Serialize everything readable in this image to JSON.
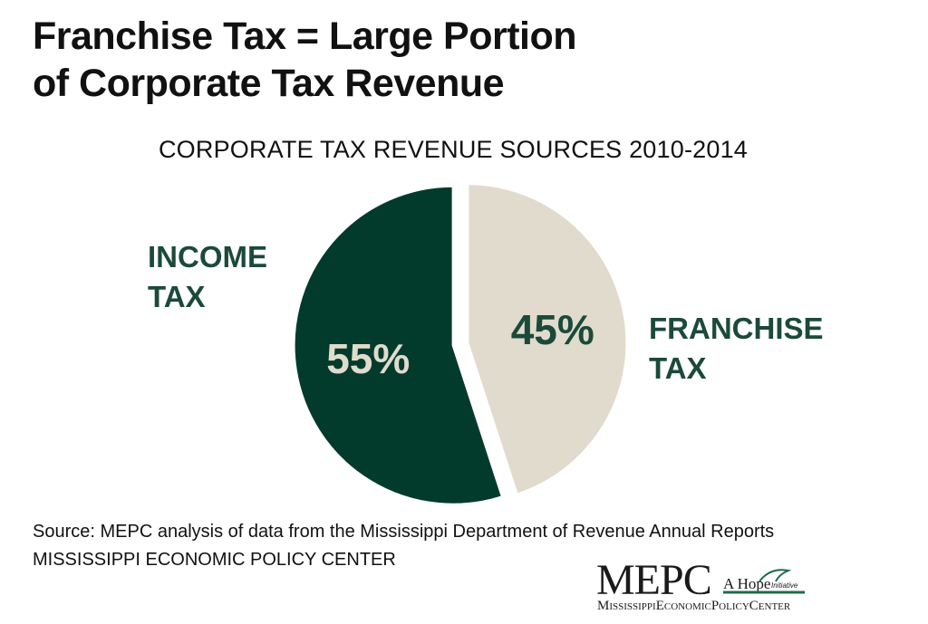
{
  "headline": {
    "line1": "Franchise Tax = Large Portion",
    "line2": "of Corporate Tax Revenue"
  },
  "colors": {
    "income": "#023b2c",
    "franchise": "#e1dbcd",
    "label_green": "#1b4a3a",
    "logo_green": "#1f6b4a"
  },
  "chart_data": {
    "type": "pie",
    "title": "CORPORATE TAX REVENUE SOURCES 2010-2014",
    "slices": [
      {
        "name": "INCOME TAX",
        "label_line1": "INCOME",
        "label_line2": "TAX",
        "value": 55,
        "value_label": "55%",
        "color": "#023b2c",
        "value_color": "#e1dbcd"
      },
      {
        "name": "FRANCHISE TAX",
        "label_line1": "FRANCHISE",
        "label_line2": "TAX",
        "value": 45,
        "value_label": "45%",
        "color": "#e1dbcd",
        "value_color": "#1b4a3a"
      }
    ]
  },
  "footer": {
    "source": "Source: MEPC analysis of data from the Mississippi Department of Revenue Annual Reports",
    "org": "MISSISSIPPI ECONOMIC POLICY CENTER"
  },
  "logo": {
    "mark": "MEPC",
    "tagline": "A Hope",
    "tagline_small": "Initiative",
    "name_parts": [
      "M",
      "ISSISSIPPI",
      "E",
      "CONOMIC",
      "P",
      "OLICY",
      "C",
      "ENTER"
    ]
  }
}
